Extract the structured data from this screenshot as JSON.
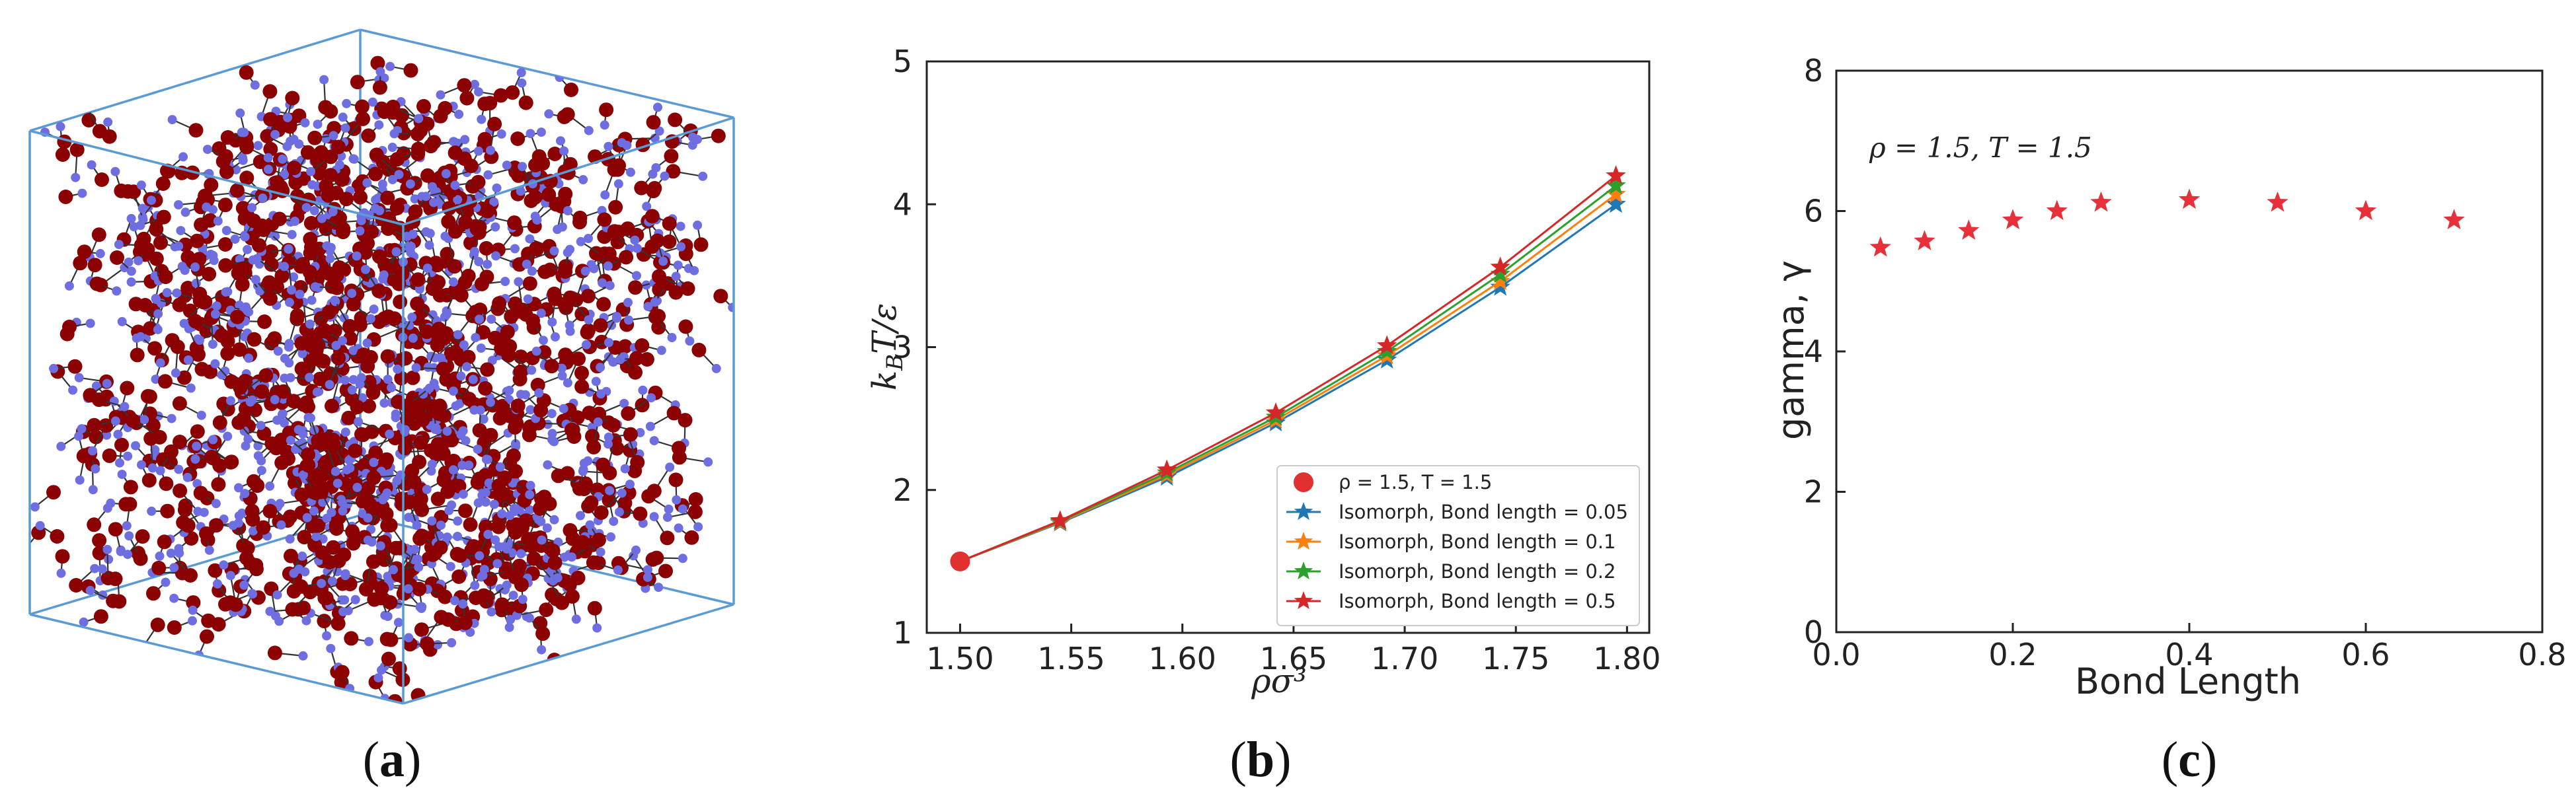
{
  "panels": {
    "a": {
      "label_open": "(",
      "letter": "a",
      "label_close": ")"
    },
    "b": {
      "label_open": "(",
      "letter": "b",
      "label_close": ")"
    },
    "c": {
      "label_open": "(",
      "letter": "c",
      "label_close": ")"
    }
  },
  "colors": {
    "box": "#5b9bd5",
    "red_particle": "#8b0000",
    "blue_particle": "#6f6ee0",
    "bond": "#333333"
  },
  "chart_data": [
    {
      "id": "b",
      "type": "line",
      "xlabel": "ρσ³",
      "ylabel": "k_BT/ε",
      "xlim": [
        1.485,
        1.81
      ],
      "ylim": [
        1,
        5
      ],
      "xticks": [
        "1.50",
        "1.55",
        "1.60",
        "1.65",
        "1.70",
        "1.75",
        "1.80"
      ],
      "yticks": [
        "1",
        "2",
        "3",
        "4",
        "5"
      ],
      "reference_point": {
        "name": "ρ = 1.5, T = 1.5",
        "x": 1.5,
        "y": 1.5,
        "color": "#e03030"
      },
      "series": [
        {
          "name": "Isomorph, Bond length = 0.05",
          "color": "#1f77b4",
          "x": [
            1.5,
            1.545,
            1.593,
            1.642,
            1.692,
            1.743,
            1.795
          ],
          "y": [
            1.5,
            1.77,
            2.09,
            2.47,
            2.91,
            3.42,
            4.0
          ]
        },
        {
          "name": "Isomorph, Bond length = 0.1",
          "color": "#ff7f0e",
          "x": [
            1.5,
            1.545,
            1.593,
            1.642,
            1.692,
            1.743,
            1.795
          ],
          "y": [
            1.5,
            1.775,
            2.105,
            2.49,
            2.94,
            3.46,
            4.07
          ]
        },
        {
          "name": "Isomorph, Bond length = 0.2",
          "color": "#2ca02c",
          "x": [
            1.5,
            1.545,
            1.593,
            1.642,
            1.692,
            1.743,
            1.795
          ],
          "y": [
            1.5,
            1.78,
            2.12,
            2.51,
            2.97,
            3.51,
            4.13
          ]
        },
        {
          "name": "Isomorph, Bond length = 0.5",
          "color": "#d62728",
          "x": [
            1.5,
            1.545,
            1.593,
            1.642,
            1.692,
            1.743,
            1.795
          ],
          "y": [
            1.5,
            1.785,
            2.14,
            2.54,
            3.01,
            3.56,
            4.2
          ]
        }
      ],
      "legend_position": "lower-right"
    },
    {
      "id": "c",
      "type": "scatter",
      "xlabel": "Bond Length",
      "ylabel": "gamma, γ",
      "xlim": [
        0,
        0.8
      ],
      "ylim": [
        0,
        8
      ],
      "xticks": [
        "0.0",
        "0.2",
        "0.4",
        "0.6",
        "0.8"
      ],
      "yticks": [
        "0",
        "2",
        "4",
        "6",
        "8"
      ],
      "annotation": "ρ = 1.5, T = 1.5",
      "series": [
        {
          "name": "gamma",
          "color": "#e8303a",
          "x": [
            0.05,
            0.1,
            0.15,
            0.2,
            0.25,
            0.3,
            0.4,
            0.5,
            0.6,
            0.7
          ],
          "y": [
            5.48,
            5.57,
            5.72,
            5.87,
            6.0,
            6.12,
            6.16,
            6.12,
            6.0,
            5.87
          ]
        }
      ]
    }
  ]
}
